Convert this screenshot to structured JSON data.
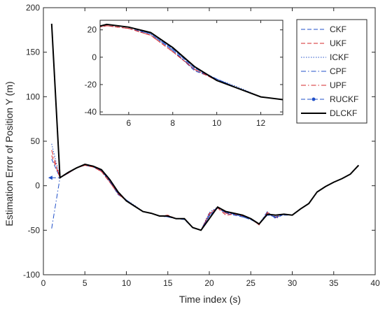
{
  "chart_data": {
    "type": "line",
    "xlabel": "Time index (s)",
    "ylabel": "Estimation Error of Position Y (m)",
    "xlim": [
      0,
      40
    ],
    "ylim": [
      -100,
      200
    ],
    "xticks": [
      0,
      5,
      10,
      15,
      20,
      25,
      30,
      35,
      40
    ],
    "yticks": [
      -100,
      -50,
      0,
      50,
      100,
      150,
      200
    ],
    "grid": false,
    "legend_position": "top-right",
    "series": [
      {
        "name": "CKF",
        "color": "#1f4fc8",
        "dash": "dashed",
        "x": [
          1,
          2,
          3,
          4,
          5,
          6,
          7,
          8,
          9,
          10,
          11,
          12,
          13,
          14,
          15,
          16,
          17,
          18,
          19,
          20,
          21,
          22,
          23,
          24,
          25,
          26,
          27,
          28,
          29,
          30,
          31,
          32,
          33,
          34,
          35,
          36,
          37,
          38
        ],
        "y": [
          30,
          9,
          14,
          20,
          23,
          21,
          17,
          5,
          -10,
          -16,
          -23,
          -29,
          -31,
          -34,
          -35,
          -37,
          -38,
          -47,
          -50,
          -34,
          -25,
          -31,
          -33,
          -35,
          -38,
          -43,
          -33,
          -35,
          -33,
          -33,
          -26,
          -20,
          -7,
          -1,
          4,
          8,
          13,
          23
        ]
      },
      {
        "name": "UKF",
        "color": "#d62728",
        "dash": "dashed",
        "x": [
          1,
          2,
          3,
          4,
          5,
          6,
          7,
          8,
          9,
          10,
          11,
          12,
          13,
          14,
          15,
          16,
          17,
          18,
          19,
          20,
          21,
          22,
          23,
          24,
          25,
          26,
          27,
          28,
          29,
          30,
          31,
          32,
          33,
          34,
          35,
          36,
          37,
          38
        ],
        "y": [
          34,
          9,
          14,
          20,
          23,
          21,
          16,
          4,
          -9,
          -17,
          -23,
          -29,
          -31,
          -34,
          -33,
          -37,
          -37,
          -47,
          -50,
          -31,
          -25,
          -33,
          -32,
          -34,
          -37,
          -44,
          -31,
          -36,
          -32,
          -33,
          -26,
          -20,
          -7,
          -1,
          4,
          8,
          13,
          23
        ]
      },
      {
        "name": "ICKF",
        "color": "#1f4fc8",
        "dash": "dotted",
        "x": [
          1,
          2,
          3,
          4,
          5,
          6,
          7,
          8,
          9,
          10,
          11,
          12,
          13,
          14,
          15,
          16,
          17,
          18,
          19,
          20,
          21,
          22,
          23,
          24,
          25,
          26,
          27,
          28,
          29,
          30,
          31,
          32,
          33,
          34,
          35,
          36,
          37,
          38
        ],
        "y": [
          47,
          9,
          14,
          20,
          24,
          22,
          17,
          6,
          -8,
          -16,
          -22,
          -29,
          -31,
          -34,
          -35,
          -37,
          -37,
          -47,
          -50,
          -30,
          -24,
          -30,
          -32,
          -34,
          -37,
          -43,
          -30,
          -36,
          -32,
          -33,
          -26,
          -20,
          -7,
          -1,
          4,
          8,
          13,
          23
        ]
      },
      {
        "name": "CPF",
        "color": "#1f4fc8",
        "dash": "dashdot",
        "x": [
          1,
          2,
          3,
          4,
          5,
          6,
          7,
          8,
          9,
          10,
          11,
          12,
          13,
          14,
          15,
          16,
          17,
          18,
          19,
          20,
          21,
          22,
          23,
          24,
          25,
          26,
          27,
          28,
          29,
          30,
          31,
          32,
          33,
          34,
          35,
          36,
          37,
          38
        ],
        "y": [
          -48,
          9,
          15,
          20,
          24,
          22,
          17,
          5,
          -9,
          -16,
          -23,
          -29,
          -31,
          -34,
          -34,
          -37,
          -37,
          -47,
          -50,
          -33,
          -24,
          -30,
          -32,
          -35,
          -38,
          -43,
          -29,
          -37,
          -32,
          -33,
          -26,
          -20,
          -7,
          -1,
          4,
          8,
          13,
          23
        ]
      },
      {
        "name": "UPF",
        "color": "#d62728",
        "dash": "dashdot",
        "x": [
          1,
          2,
          3,
          4,
          5,
          6,
          7,
          8,
          9,
          10,
          11,
          12,
          13,
          14,
          15,
          16,
          17,
          18,
          19,
          20,
          21,
          22,
          23,
          24,
          25,
          26,
          27,
          28,
          29,
          30,
          31,
          32,
          33,
          34,
          35,
          36,
          37,
          38
        ],
        "y": [
          40,
          9,
          14,
          20,
          23,
          21,
          16,
          4,
          -9,
          -17,
          -23,
          -29,
          -31,
          -34,
          -34,
          -37,
          -37,
          -47,
          -50,
          -32,
          -24,
          -31,
          -32,
          -34,
          -37,
          -44,
          -30,
          -35,
          -32,
          -33,
          -26,
          -20,
          -7,
          -1,
          4,
          8,
          13,
          23
        ]
      },
      {
        "name": "RUCKF",
        "color": "#1f4fc8",
        "dash": "dashed-marker",
        "x": [
          1,
          2,
          3,
          4,
          5,
          6,
          7,
          8,
          9,
          10,
          11,
          12,
          13,
          14,
          15,
          16,
          17,
          18,
          19,
          20,
          21,
          22,
          23,
          24,
          25,
          26,
          27,
          28,
          29,
          30,
          31,
          32,
          33,
          34,
          35,
          36,
          37,
          38
        ],
        "y": [
          9,
          9,
          15,
          20,
          24,
          22,
          18,
          6,
          -8,
          -16,
          -23,
          -29,
          -31,
          -34,
          -35,
          -37,
          -37,
          -47,
          -50,
          -34,
          -24,
          -30,
          -32,
          -34,
          -37,
          -43,
          -32,
          -35,
          -32,
          -33,
          -26,
          -20,
          -7,
          -1,
          4,
          8,
          13,
          23
        ]
      },
      {
        "name": "DLCKF",
        "color": "#000000",
        "dash": "solid",
        "x": [
          1,
          2,
          3,
          4,
          5,
          6,
          7,
          8,
          9,
          10,
          11,
          12,
          13,
          14,
          15,
          16,
          17,
          18,
          19,
          20,
          21,
          22,
          23,
          24,
          25,
          26,
          27,
          28,
          29,
          30,
          31,
          32,
          33,
          34,
          35,
          36,
          37,
          38
        ],
        "y": [
          182,
          9,
          15,
          20,
          24,
          22,
          18,
          7,
          -7,
          -17,
          -23,
          -29,
          -31,
          -34,
          -34,
          -37,
          -37,
          -47,
          -50,
          -37,
          -24,
          -29,
          -31,
          -33,
          -37,
          -43,
          -32,
          -33,
          -32,
          -33,
          -26,
          -20,
          -7,
          -1,
          4,
          8,
          13,
          23
        ]
      }
    ],
    "inset": {
      "xlim": [
        4.7,
        13
      ],
      "ylim": [
        -42,
        27
      ],
      "xticks": [
        6,
        8,
        10,
        12
      ],
      "yticks": [
        -40,
        -20,
        0,
        20
      ]
    }
  }
}
